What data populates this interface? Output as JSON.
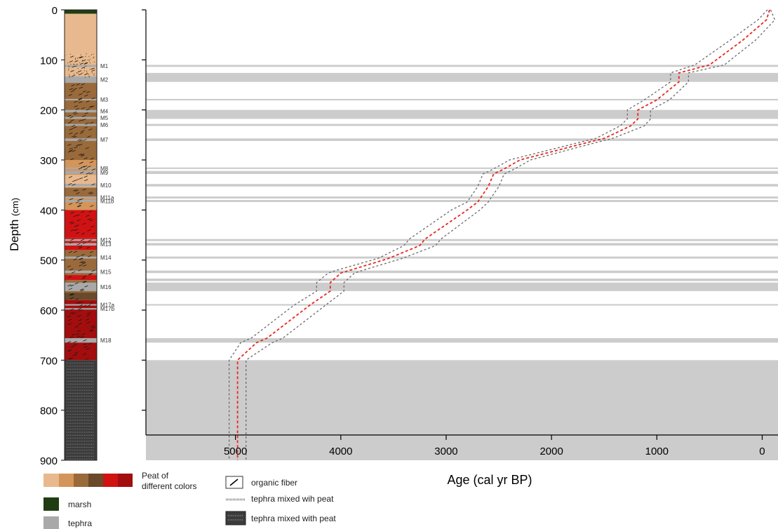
{
  "colors": {
    "tephra_band": "#cccccc",
    "tephra_layer": "#a9a9a9",
    "marsh": "#1f3d12",
    "dark_core": "#3c3c3c",
    "median_line": "#e8281e",
    "range_line": "#6b6b6b",
    "peat_1": "#e8b98e",
    "peat_2": "#d4955a",
    "peat_3": "#9a6a3a",
    "peat_4": "#6a4a2a",
    "peat_5": "#d11212",
    "peat_6": "#a30d0d"
  },
  "core": {
    "units": [
      {
        "top": 0,
        "bottom": 8,
        "material": "marsh"
      },
      {
        "top": 8,
        "bottom": 90,
        "material": "peat_1"
      },
      {
        "top": 90,
        "bottom": 135,
        "material": "peat_1"
      },
      {
        "top": 135,
        "bottom": 145,
        "material": "tephra"
      },
      {
        "top": 145,
        "bottom": 300,
        "material": "peat_3"
      },
      {
        "top": 300,
        "bottom": 330,
        "material": "peat_2"
      },
      {
        "top": 330,
        "bottom": 355,
        "material": "peat_1"
      },
      {
        "top": 355,
        "bottom": 375,
        "material": "peat_3"
      },
      {
        "top": 375,
        "bottom": 400,
        "material": "peat_2"
      },
      {
        "top": 400,
        "bottom": 455,
        "material": "peat_5"
      },
      {
        "top": 455,
        "bottom": 480,
        "material": "peat_5"
      },
      {
        "top": 480,
        "bottom": 530,
        "material": "peat_3"
      },
      {
        "top": 530,
        "bottom": 540,
        "material": "peat_5"
      },
      {
        "top": 540,
        "bottom": 565,
        "material": "peat_3"
      },
      {
        "top": 565,
        "bottom": 580,
        "material": "peat_4"
      },
      {
        "top": 580,
        "bottom": 700,
        "material": "peat_6"
      },
      {
        "top": 700,
        "bottom": 900,
        "material": "dark_core"
      }
    ],
    "tephra_layers": [
      {
        "label": "M1",
        "top": 110,
        "bottom": 114
      },
      {
        "label": "M2",
        "top": 133,
        "bottom": 146
      },
      {
        "label": "M3",
        "top": 178,
        "bottom": 181
      },
      {
        "label": "M4",
        "top": 200,
        "bottom": 205
      },
      {
        "label": "M5",
        "top": 214,
        "bottom": 218
      },
      {
        "label": "M6",
        "top": 228,
        "bottom": 232
      },
      {
        "label": "M7",
        "top": 257,
        "bottom": 262
      },
      {
        "label": "M8",
        "top": 315,
        "bottom": 318
      },
      {
        "label": "M9",
        "top": 322,
        "bottom": 328
      },
      {
        "label": "M10",
        "top": 348,
        "bottom": 353
      },
      {
        "label": "M11a",
        "top": 373,
        "bottom": 377
      },
      {
        "label": "M11b",
        "top": 380,
        "bottom": 384
      },
      {
        "label": "M12",
        "top": 458,
        "bottom": 462
      },
      {
        "label": "M13",
        "top": 466,
        "bottom": 471
      },
      {
        "label": "M14",
        "top": 493,
        "bottom": 497
      },
      {
        "label": "M15",
        "top": 521,
        "bottom": 526
      },
      {
        "label": "M16",
        "top": 545,
        "bottom": 562
      },
      {
        "label": "M17a",
        "top": 588,
        "bottom": 591
      },
      {
        "label": "M17b",
        "top": 596,
        "bottom": 599
      },
      {
        "label": "M18",
        "top": 656,
        "bottom": 665
      }
    ]
  },
  "chart_data": {
    "type": "line",
    "ylabel_main": "Depth",
    "ylabel_unit": "(cm)",
    "xlabel": "Age (cal yr BP)",
    "ylim": [
      0,
      900
    ],
    "xlim": [
      5850,
      -150
    ],
    "y_ticks": [
      0,
      100,
      200,
      300,
      400,
      500,
      600,
      700,
      800,
      900
    ],
    "x_ticks": [
      5000,
      4000,
      3000,
      2000,
      1000,
      0
    ],
    "tephra_bands": [
      [
        110,
        114
      ],
      [
        126,
        144
      ],
      [
        178,
        181
      ],
      [
        200,
        218
      ],
      [
        228,
        232
      ],
      [
        257,
        262
      ],
      [
        315,
        318
      ],
      [
        322,
        328
      ],
      [
        348,
        353
      ],
      [
        373,
        377
      ],
      [
        380,
        384
      ],
      [
        458,
        462
      ],
      [
        466,
        471
      ],
      [
        493,
        497
      ],
      [
        521,
        526
      ],
      [
        537,
        542
      ],
      [
        545,
        562
      ],
      [
        588,
        591
      ],
      [
        656,
        665
      ],
      [
        700,
        900
      ]
    ],
    "series": [
      {
        "role": "median",
        "depth": [
          0,
          20,
          60,
          110,
          126,
          144,
          180,
          200,
          218,
          232,
          257,
          262,
          300,
          318,
          328,
          353,
          384,
          400,
          458,
          471,
          497,
          521,
          526,
          545,
          562,
          591,
          656,
          665,
          700,
          900
        ],
        "age": [
          -70,
          -40,
          180,
          500,
          790,
          790,
          1000,
          1180,
          1180,
          1250,
          1500,
          1600,
          2300,
          2450,
          2550,
          2600,
          2700,
          2800,
          3200,
          3250,
          3550,
          3920,
          4000,
          4100,
          4100,
          4300,
          4700,
          4800,
          4980,
          4980
        ]
      },
      {
        "role": "upper",
        "depth": [
          0,
          20,
          60,
          110,
          126,
          144,
          180,
          200,
          218,
          232,
          257,
          262,
          300,
          318,
          328,
          353,
          384,
          400,
          458,
          471,
          497,
          521,
          526,
          545,
          562,
          591,
          656,
          665,
          700,
          900
        ],
        "age": [
          -50,
          40,
          300,
          640,
          870,
          870,
          1120,
          1280,
          1280,
          1350,
          1580,
          1680,
          2400,
          2550,
          2650,
          2700,
          2800,
          2950,
          3350,
          3400,
          3650,
          4050,
          4120,
          4230,
          4230,
          4450,
          4850,
          4950,
          5060,
          5060
        ]
      },
      {
        "role": "lower",
        "depth": [
          0,
          20,
          60,
          110,
          126,
          144,
          180,
          200,
          218,
          232,
          257,
          262,
          300,
          318,
          328,
          353,
          384,
          400,
          458,
          471,
          497,
          521,
          526,
          545,
          562,
          591,
          656,
          665,
          700,
          900
        ],
        "age": [
          -80,
          -120,
          60,
          360,
          700,
          700,
          880,
          1060,
          1060,
          1120,
          1420,
          1520,
          2200,
          2350,
          2450,
          2500,
          2600,
          2680,
          3050,
          3100,
          3420,
          3800,
          3870,
          3970,
          3970,
          4150,
          4550,
          4650,
          4900,
          4900
        ]
      }
    ]
  },
  "legend": {
    "peat_label_line1": "Peat of",
    "peat_label_line2": "different colors",
    "marsh_label": "marsh",
    "tephra_label": "tephra",
    "organic_fiber_label": "organic fiber",
    "tephra_dotted_label": "tephra mixed wih peat",
    "tephra_dark_label": "tephra mixed with peat"
  }
}
